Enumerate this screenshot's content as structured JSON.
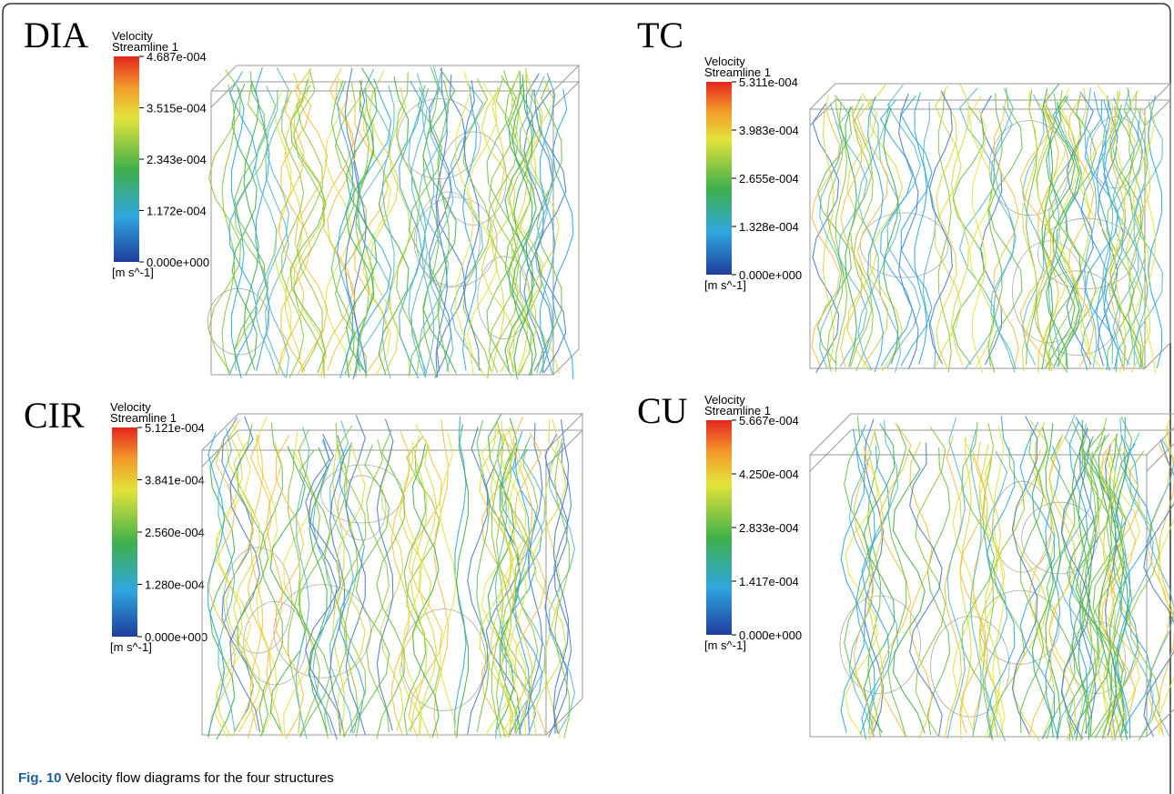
{
  "panels": [
    {
      "label": "DIA",
      "legend": {
        "title": "Velocity",
        "subtitle": "Streamline 1",
        "ticks": [
          "4.687e-004",
          "3.515e-004",
          "2.343e-004",
          "1.172e-004",
          "0.000e+000"
        ],
        "unit": "[m s^-1]"
      }
    },
    {
      "label": "TC",
      "legend": {
        "title": "Velocity",
        "subtitle": "Streamline 1",
        "ticks": [
          "5.311e-004",
          "3.983e-004",
          "2.655e-004",
          "1.328e-004",
          "0.000e+000"
        ],
        "unit": "[m s^-1]"
      }
    },
    {
      "label": "CIR",
      "legend": {
        "title": "Velocity",
        "subtitle": "Streamline 1",
        "ticks": [
          "5.121e-004",
          "3.841e-004",
          "2.560e-004",
          "1.280e-004",
          "0.000e+000"
        ],
        "unit": "[m s^-1]"
      }
    },
    {
      "label": "CU",
      "legend": {
        "title": "Velocity",
        "subtitle": "Streamline 1",
        "ticks": [
          "5.667e-004",
          "4.250e-004",
          "2.833e-004",
          "1.417e-004",
          "0.000e+000"
        ],
        "unit": "[m s^-1]"
      }
    }
  ],
  "caption": {
    "number": "Fig. 10",
    "text": "Velocity flow diagrams for the four structures"
  }
}
